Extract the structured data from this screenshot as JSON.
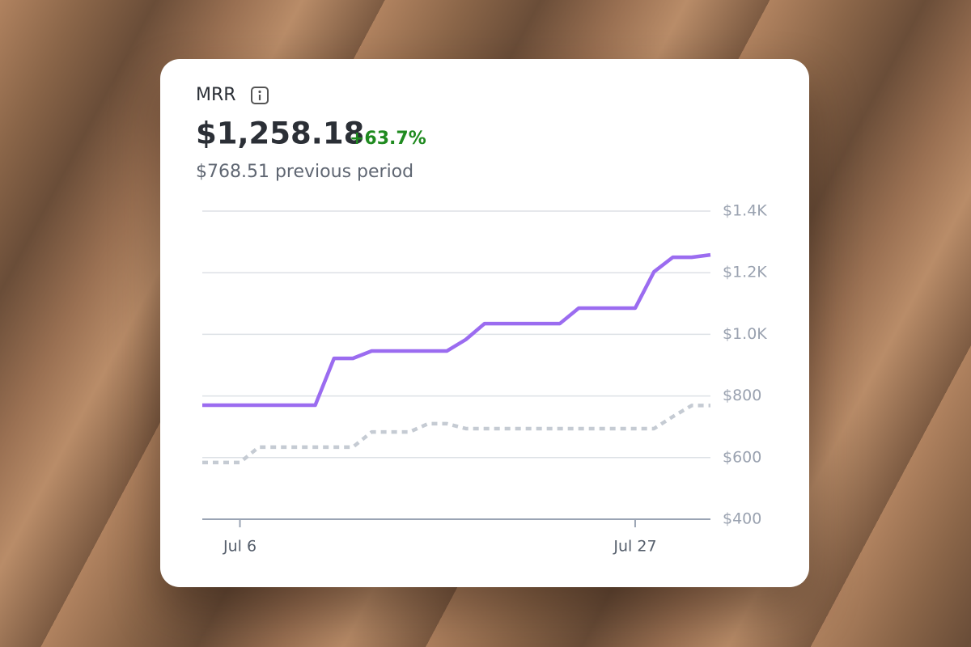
{
  "card": {
    "title": "MRR",
    "value": "$1,258.18",
    "change": "+63.7%",
    "previous": "$768.51 previous period"
  },
  "chart_data": {
    "type": "line",
    "categories": [
      null,
      null,
      "Jul 6",
      null,
      null,
      null,
      null,
      null,
      null,
      null,
      null,
      null,
      null,
      null,
      null,
      null,
      null,
      null,
      null,
      null,
      null,
      null,
      null,
      "Jul 27",
      null,
      null,
      null,
      null
    ],
    "series": [
      {
        "color": "#9b6cf0",
        "style": "solid",
        "values": [
          770,
          770,
          770,
          770,
          770,
          770,
          770,
          922,
          922,
          946,
          946,
          946,
          946,
          946,
          983,
          1035,
          1035,
          1035,
          1035,
          1035,
          1085,
          1085,
          1085,
          1085,
          1203,
          1250,
          1250,
          1258
        ]
      },
      {
        "color": "#c5cbd3",
        "style": "dotted",
        "values": [
          584,
          584,
          584,
          634,
          634,
          634,
          634,
          634,
          634,
          683,
          683,
          683,
          710,
          710,
          694,
          694,
          694,
          694,
          694,
          694,
          694,
          694,
          694,
          694,
          694,
          733,
          769,
          769
        ]
      }
    ],
    "ylim": [
      400,
      1400
    ],
    "yticks": [
      {
        "value": 400,
        "label": "$400"
      },
      {
        "value": 600,
        "label": "$600"
      },
      {
        "value": 800,
        "label": "$800"
      },
      {
        "value": 1000,
        "label": "$1.0K"
      },
      {
        "value": 1200,
        "label": "$1.2K"
      },
      {
        "value": 1400,
        "label": "$1.4K"
      }
    ],
    "grid": true,
    "axis_side": "right"
  }
}
